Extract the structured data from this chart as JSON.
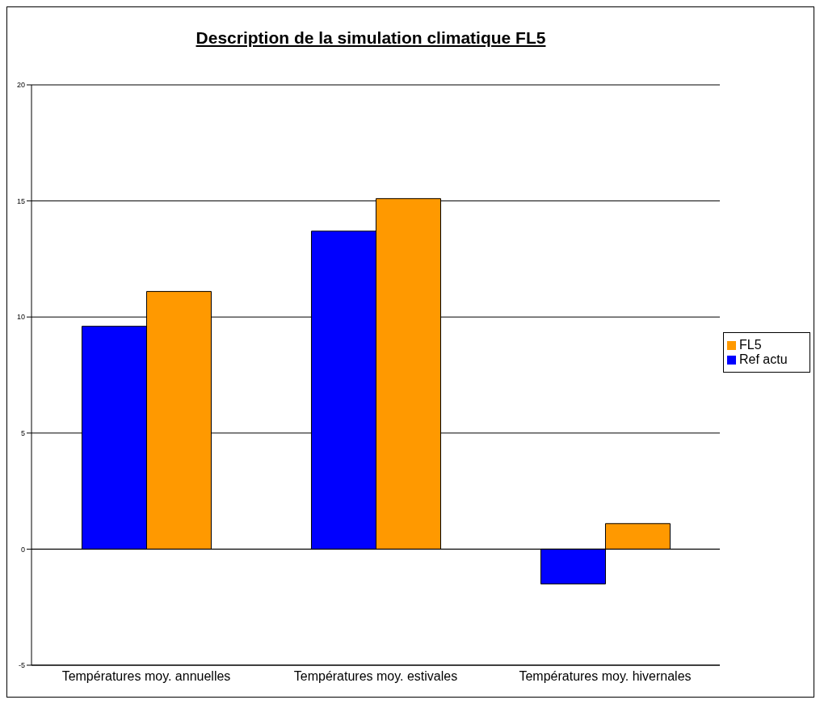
{
  "chart_data": {
    "type": "bar",
    "title": "Description de la simulation climatique FL5",
    "categories": [
      "Températures moy. annuelles",
      "Températures moy. estivales",
      "Températures moy. hivernales"
    ],
    "series": [
      {
        "name": "Ref actu",
        "color": "#0000ff",
        "values": [
          9.6,
          13.7,
          -1.5
        ]
      },
      {
        "name": "FL5",
        "color": "#ff9900",
        "values": [
          11.1,
          15.1,
          1.1
        ]
      }
    ],
    "ylim": [
      -5,
      20
    ],
    "yticks": [
      -5,
      0,
      5,
      10,
      15,
      20
    ],
    "grid": "y",
    "legend": "right"
  }
}
